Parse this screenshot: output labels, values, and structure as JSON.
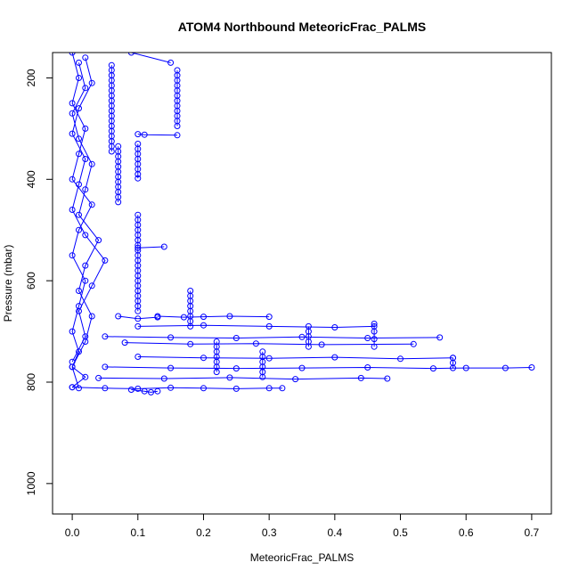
{
  "chart_data": {
    "type": "scatter",
    "title": "ATOM4 Northbound MeteoricFrac_PALMS",
    "xlabel": "MeteoricFrac_PALMS",
    "ylabel": "Pressure (mbar)",
    "xlim": [
      -0.03,
      0.73
    ],
    "ylim": [
      1060,
      150
    ],
    "y_reversed": true,
    "x_ticks": [
      "0.0",
      "0.1",
      "0.2",
      "0.3",
      "0.4",
      "0.5",
      "0.6",
      "0.7"
    ],
    "x_tick_values": [
      0,
      0.1,
      0.2,
      0.3,
      0.4,
      0.5,
      0.6,
      0.7
    ],
    "y_ticks": [
      "200",
      "400",
      "600",
      "800",
      "1000"
    ],
    "y_tick_values": [
      200,
      400,
      600,
      800,
      1000
    ],
    "grid": false,
    "colors": {
      "series": "#0000ff",
      "axis": "#000000"
    },
    "series": [
      {
        "profiles": [
          {
            "x": [
              0.0,
              0.01,
              0.0,
              0.02,
              0.01,
              0.0,
              0.03,
              0.01,
              0.0,
              0.02,
              0.01,
              0.0,
              0.01,
              0.0,
              0.02,
              0.0
            ],
            "y": [
              150,
              200,
              250,
              300,
              350,
              400,
              450,
              500,
              550,
              600,
              650,
              700,
              740,
              770,
              790,
              810
            ]
          },
          {
            "x": [
              0.01,
              0.02,
              0.0,
              0.01,
              0.03,
              0.02,
              0.01,
              0.04,
              0.02,
              0.01,
              0.03,
              0.02,
              0.0,
              0.01
            ],
            "y": [
              170,
              220,
              270,
              320,
              370,
              420,
              470,
              520,
              570,
              620,
              670,
              720,
              770,
              812
            ]
          },
          {
            "x": [
              0.02,
              0.03,
              0.01,
              0.0,
              0.02,
              0.01,
              0.0,
              0.02,
              0.05,
              0.03,
              0.01,
              0.02,
              0.0
            ],
            "y": [
              160,
              210,
              260,
              310,
              360,
              410,
              460,
              510,
              560,
              610,
              660,
              710,
              760
            ]
          },
          {
            "x": [
              0.09,
              0.15
            ],
            "y": [
              150,
              170
            ]
          },
          {
            "x": [
              0.16,
              0.16,
              0.16,
              0.16,
              0.16,
              0.16,
              0.16,
              0.16,
              0.16,
              0.16,
              0.16,
              0.16
            ],
            "y": [
              185,
              195,
              205,
              215,
              225,
              235,
              245,
              255,
              265,
              275,
              285,
              295
            ]
          },
          {
            "x": [
              0.1,
              0.11,
              0.16
            ],
            "y": [
              311,
              312,
              313
            ]
          },
          {
            "x": [
              0.1,
              0.1,
              0.1,
              0.1,
              0.1,
              0.1,
              0.1,
              0.1
            ],
            "y": [
              330,
              340,
              350,
              360,
              370,
              380,
              390,
              398
            ]
          },
          {
            "x": [
              0.06,
              0.06,
              0.06,
              0.06,
              0.06,
              0.06,
              0.06,
              0.06,
              0.06,
              0.06,
              0.06,
              0.06,
              0.06,
              0.06,
              0.06,
              0.06,
              0.06,
              0.06
            ],
            "y": [
              175,
              185,
              195,
              205,
              215,
              225,
              235,
              245,
              255,
              265,
              275,
              285,
              295,
              305,
              315,
              325,
              335,
              345
            ]
          },
          {
            "x": [
              0.07,
              0.07,
              0.07,
              0.07,
              0.07,
              0.07,
              0.07,
              0.07,
              0.07,
              0.07,
              0.07,
              0.07
            ],
            "y": [
              335,
              345,
              355,
              365,
              375,
              385,
              395,
              405,
              415,
              425,
              435,
              445
            ]
          },
          {
            "x": [
              0.1,
              0.1,
              0.1,
              0.1,
              0.1,
              0.1,
              0.1,
              0.1,
              0.1,
              0.1,
              0.1,
              0.1,
              0.1,
              0.1,
              0.1,
              0.1,
              0.1,
              0.1,
              0.1,
              0.1
            ],
            "y": [
              470,
              480,
              490,
              500,
              510,
              520,
              530,
              540,
              550,
              560,
              570,
              580,
              590,
              600,
              610,
              620,
              630,
              640,
              650,
              660
            ]
          },
          {
            "x": [
              0.14,
              0.1
            ],
            "y": [
              533,
              535
            ]
          },
          {
            "x": [
              0.07,
              0.1,
              0.13
            ],
            "y": [
              670,
              675,
              672
            ]
          },
          {
            "x": [
              0.13,
              0.17,
              0.2,
              0.24,
              0.3
            ],
            "y": [
              670,
              672,
              671,
              670,
              671
            ]
          },
          {
            "x": [
              0.1,
              0.2,
              0.3,
              0.4,
              0.46
            ],
            "y": [
              690,
              688,
              690,
              692,
              690
            ]
          },
          {
            "x": [
              0.05,
              0.15,
              0.25,
              0.35,
              0.45,
              0.56
            ],
            "y": [
              710,
              712,
              713,
              711,
              713,
              712
            ]
          },
          {
            "x": [
              0.08,
              0.18,
              0.28,
              0.38,
              0.52
            ],
            "y": [
              722,
              725,
              724,
              726,
              725
            ]
          },
          {
            "x": [
              0.1,
              0.2,
              0.3,
              0.4,
              0.5,
              0.58
            ],
            "y": [
              750,
              752,
              753,
              751,
              754,
              752
            ]
          },
          {
            "x": [
              0.05,
              0.15,
              0.25,
              0.35,
              0.45,
              0.55,
              0.6,
              0.66,
              0.7
            ],
            "y": [
              770,
              772,
              773,
              772,
              771,
              773,
              772,
              772,
              771
            ]
          },
          {
            "x": [
              0.04,
              0.14,
              0.24,
              0.34,
              0.44,
              0.48
            ],
            "y": [
              792,
              793,
              791,
              794,
              792,
              793
            ]
          },
          {
            "x": [
              0.0,
              0.05,
              0.1,
              0.15,
              0.2,
              0.25,
              0.3,
              0.32
            ],
            "y": [
              810,
              812,
              813,
              811,
              812,
              813,
              812,
              812
            ]
          },
          {
            "x": [
              0.09,
              0.11,
              0.12,
              0.13
            ],
            "y": [
              815,
              818,
              820,
              818
            ]
          },
          {
            "x": [
              0.18,
              0.18,
              0.18,
              0.18,
              0.18,
              0.18,
              0.18,
              0.18
            ],
            "y": [
              620,
              630,
              640,
              650,
              660,
              670,
              680,
              690
            ]
          },
          {
            "x": [
              0.36,
              0.36,
              0.36,
              0.36,
              0.36
            ],
            "y": [
              690,
              700,
              710,
              720,
              730
            ]
          },
          {
            "x": [
              0.46,
              0.46,
              0.46,
              0.46
            ],
            "y": [
              685,
              700,
              715,
              730
            ]
          },
          {
            "x": [
              0.58,
              0.58,
              0.58
            ],
            "y": [
              752,
              762,
              772
            ]
          },
          {
            "x": [
              0.29,
              0.29,
              0.29,
              0.29,
              0.29,
              0.29
            ],
            "y": [
              740,
              750,
              760,
              770,
              780,
              790
            ]
          },
          {
            "x": [
              0.22,
              0.22,
              0.22,
              0.22,
              0.22,
              0.22,
              0.22
            ],
            "y": [
              720,
              730,
              740,
              750,
              760,
              770,
              780
            ]
          }
        ]
      }
    ]
  }
}
